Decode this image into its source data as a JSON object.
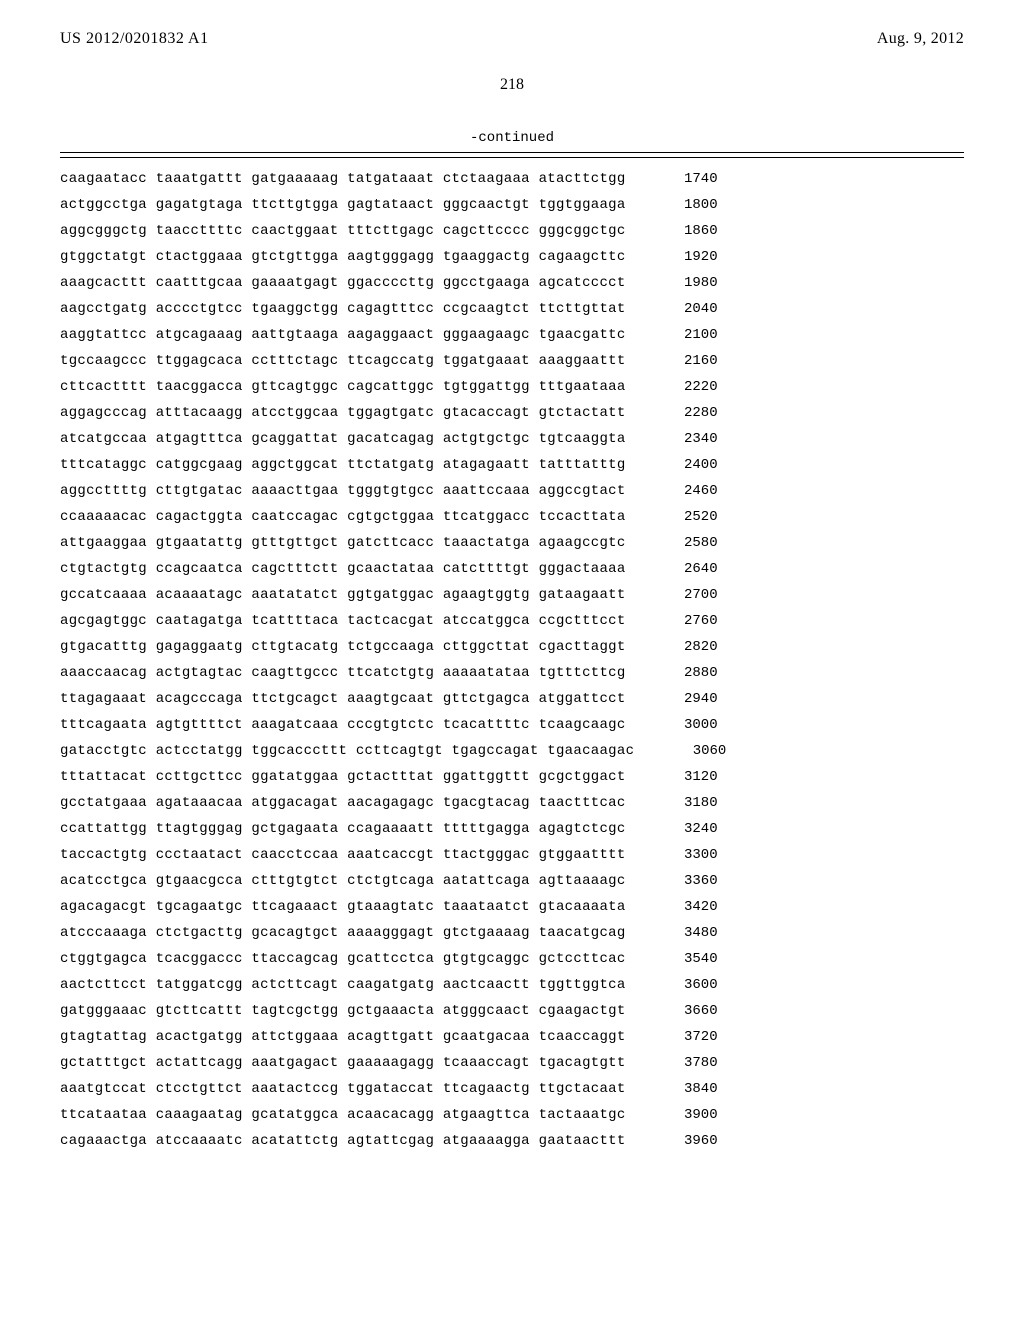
{
  "header": {
    "publication_number": "US 2012/0201832 A1",
    "publication_date": "Aug. 9, 2012",
    "page_number": "218",
    "continued_label": "-continued"
  },
  "sequence": {
    "font_family": "Courier New",
    "font_size_pt": 10.5,
    "text_color": "#000000",
    "background_color": "#ffffff",
    "rows": [
      {
        "groups": [
          "caagaatacc",
          "taaatgattt",
          "gatgaaaaag",
          "tatgataaat",
          "ctctaagaaa",
          "atacttctgg"
        ],
        "pos": 1740
      },
      {
        "groups": [
          "actggcctga",
          "gagatgtaga",
          "ttcttgtgga",
          "gagtataact",
          "gggcaactgt",
          "tggtggaaga"
        ],
        "pos": 1800
      },
      {
        "groups": [
          "aggcgggctg",
          "taaccttttc",
          "caactggaat",
          "tttcttgagc",
          "cagcttcccc",
          "gggcggctgc"
        ],
        "pos": 1860
      },
      {
        "groups": [
          "gtggctatgt",
          "ctactggaaa",
          "gtctgttgga",
          "aagtgggagg",
          "tgaaggactg",
          "cagaagcttc"
        ],
        "pos": 1920
      },
      {
        "groups": [
          "aaagcacttt",
          "caatttgcaa",
          "gaaaatgagt",
          "ggaccccttg",
          "ggcctgaaga",
          "agcatcccct"
        ],
        "pos": 1980
      },
      {
        "groups": [
          "aagcctgatg",
          "acccctgtcc",
          "tgaaggctgg",
          "cagagtttcc",
          "ccgcaagtct",
          "ttcttgttat"
        ],
        "pos": 2040
      },
      {
        "groups": [
          "aaggtattcc",
          "atgcagaaag",
          "aattgtaaga",
          "aagaggaact",
          "gggaagaagc",
          "tgaacgattc"
        ],
        "pos": 2100
      },
      {
        "groups": [
          "tgccaagccc",
          "ttggagcaca",
          "cctttctagc",
          "ttcagccatg",
          "tggatgaaat",
          "aaaggaattt"
        ],
        "pos": 2160
      },
      {
        "groups": [
          "cttcactttt",
          "taacggacca",
          "gttcagtggc",
          "cagcattggc",
          "tgtggattgg",
          "tttgaataaa"
        ],
        "pos": 2220
      },
      {
        "groups": [
          "aggagcccag",
          "atttacaagg",
          "atcctggcaa",
          "tggagtgatc",
          "gtacaccagt",
          "gtctactatt"
        ],
        "pos": 2280
      },
      {
        "groups": [
          "atcatgccaa",
          "atgagtttca",
          "gcaggattat",
          "gacatcagag",
          "actgtgctgc",
          "tgtcaaggta"
        ],
        "pos": 2340
      },
      {
        "groups": [
          "tttcataggc",
          "catggcgaag",
          "aggctggcat",
          "ttctatgatg",
          "atagagaatt",
          "tatttatttg"
        ],
        "pos": 2400
      },
      {
        "groups": [
          "aggccttttg",
          "cttgtgatac",
          "aaaacttgaa",
          "tgggtgtgcc",
          "aaattccaaa",
          "aggccgtact"
        ],
        "pos": 2460
      },
      {
        "groups": [
          "ccaaaaacac",
          "cagactggta",
          "caatccagac",
          "cgtgctggaa",
          "ttcatggacc",
          "tccacttata"
        ],
        "pos": 2520
      },
      {
        "groups": [
          "attgaaggaa",
          "gtgaatattg",
          "gtttgttgct",
          "gatcttcacc",
          "taaactatga",
          "agaagccgtc"
        ],
        "pos": 2580
      },
      {
        "groups": [
          "ctgtactgtg",
          "ccagcaatca",
          "cagctttctt",
          "gcaactataa",
          "catcttttgt",
          "gggactaaaa"
        ],
        "pos": 2640
      },
      {
        "groups": [
          "gccatcaaaa",
          "acaaaatagc",
          "aaatatatct",
          "ggtgatggac",
          "agaagtggtg",
          "gataagaatt"
        ],
        "pos": 2700
      },
      {
        "groups": [
          "agcgagtggc",
          "caatagatga",
          "tcattttaca",
          "tactcacgat",
          "atccatggca",
          "ccgctttcct"
        ],
        "pos": 2760
      },
      {
        "groups": [
          "gtgacatttg",
          "gagaggaatg",
          "cttgtacatg",
          "tctgccaaga",
          "cttggcttat",
          "cgacttaggt"
        ],
        "pos": 2820
      },
      {
        "groups": [
          "aaaccaacag",
          "actgtagtac",
          "caagttgccc",
          "ttcatctgtg",
          "aaaaatataa",
          "tgtttcttcg"
        ],
        "pos": 2880
      },
      {
        "groups": [
          "ttagagaaat",
          "acagcccaga",
          "ttctgcagct",
          "aaagtgcaat",
          "gttctgagca",
          "atggattcct"
        ],
        "pos": 2940
      },
      {
        "groups": [
          "tttcagaata",
          "agtgttttct",
          "aaagatcaaa",
          "cccgtgtctc",
          "tcacattttc",
          "tcaagcaagc"
        ],
        "pos": 3000
      },
      {
        "groups": [
          "gatacctgtc",
          "actcctatgg",
          "tggcacccttt",
          "ccttcagtgt",
          "tgagccagat",
          "tgaacaagac"
        ],
        "pos": 3060
      },
      {
        "groups": [
          "tttattacat",
          "ccttgcttcc",
          "ggatatggaa",
          "gctactttat",
          "ggattggttt",
          "gcgctggact"
        ],
        "pos": 3120
      },
      {
        "groups": [
          "gcctatgaaa",
          "agataaacaa",
          "atggacagat",
          "aacagagagc",
          "tgacgtacag",
          "taactttcac"
        ],
        "pos": 3180
      },
      {
        "groups": [
          "ccattattgg",
          "ttagtgggag",
          "gctgagaata",
          "ccagaaaatt",
          "tttttgagga",
          "agagtctcgc"
        ],
        "pos": 3240
      },
      {
        "groups": [
          "taccactgtg",
          "ccctaatact",
          "caacctccaa",
          "aaatcaccgt",
          "ttactgggac",
          "gtggaatttt"
        ],
        "pos": 3300
      },
      {
        "groups": [
          "acatcctgca",
          "gtgaacgcca",
          "ctttgtgtct",
          "ctctgtcaga",
          "aatattcaga",
          "agttaaaagc"
        ],
        "pos": 3360
      },
      {
        "groups": [
          "agacagacgt",
          "tgcagaatgc",
          "ttcagaaact",
          "gtaaagtatc",
          "taaataatct",
          "gtacaaaata"
        ],
        "pos": 3420
      },
      {
        "groups": [
          "atcccaaaga",
          "ctctgacttg",
          "gcacagtgct",
          "aaaagggagt",
          "gtctgaaaag",
          "taacatgcag"
        ],
        "pos": 3480
      },
      {
        "groups": [
          "ctggtgagca",
          "tcacggaccc",
          "ttaccagcag",
          "gcattcctca",
          "gtgtgcaggc",
          "gctccttcac"
        ],
        "pos": 3540
      },
      {
        "groups": [
          "aactcttcct",
          "tatggatcgg",
          "actcttcagt",
          "caagatgatg",
          "aactcaactt",
          "tggttggtca"
        ],
        "pos": 3600
      },
      {
        "groups": [
          "gatgggaaac",
          "gtcttcattt",
          "tagtcgctgg",
          "gctgaaacta",
          "atgggcaact",
          "cgaagactgt"
        ],
        "pos": 3660
      },
      {
        "groups": [
          "gtagtattag",
          "acactgatgg",
          "attctggaaa",
          "acagttgatt",
          "gcaatgacaa",
          "tcaaccaggt"
        ],
        "pos": 3720
      },
      {
        "groups": [
          "gctatttgct",
          "actattcagg",
          "aaatgagact",
          "gaaaaagagg",
          "tcaaaccagt",
          "tgacagtgtt"
        ],
        "pos": 3780
      },
      {
        "groups": [
          "aaatgtccat",
          "ctcctgttct",
          "aaatactccg",
          "tggataccat",
          "ttcagaactg",
          "ttgctacaat"
        ],
        "pos": 3840
      },
      {
        "groups": [
          "ttcataataa",
          "caaagaatag",
          "gcatatggca",
          "acaacacagg",
          "atgaagttca",
          "tactaaatgc"
        ],
        "pos": 3900
      },
      {
        "groups": [
          "cagaaactga",
          "atccaaaatc",
          "acatattctg",
          "agtattcgag",
          "atgaaaagga",
          "gaataacttt"
        ],
        "pos": 3960
      }
    ]
  }
}
